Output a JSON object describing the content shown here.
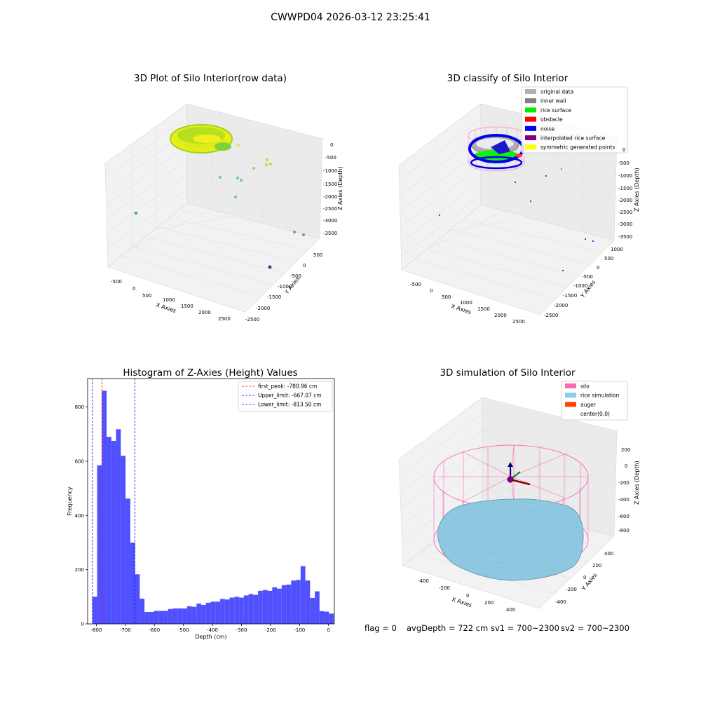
{
  "suptitle": "CWWPD04 2026-03-12 23:25:41",
  "panels": {
    "p1": {
      "title": "3D Plot of Silo Interior(row data)",
      "xlabel": "X Axies",
      "ylabel": "Y Axies",
      "zlabel": "Z Axies (Depth)",
      "xticks": [
        "-500",
        "0",
        "500",
        "1000",
        "1500",
        "2000",
        "2500"
      ],
      "yticks": [
        "500",
        "0",
        "-500",
        "-1000",
        "-1500",
        "-2000",
        "-2500"
      ],
      "zticks": [
        "0",
        "-500",
        "-1000",
        "-1500",
        "-2000",
        "-2500",
        "-3000",
        "-3500"
      ]
    },
    "p2": {
      "title": "3D classify of Silo Interior",
      "xlabel": "X Axies",
      "ylabel": "Y Axies",
      "zlabel": "Z Axies (Depth)",
      "xticks": [
        "-500",
        "0",
        "500",
        "1000",
        "1500",
        "2000",
        "2500"
      ],
      "yticks": [
        "1000",
        "500",
        "0",
        "-500",
        "-1000",
        "-1500",
        "-2000",
        "-2500"
      ],
      "zticks": [
        "0",
        "-500",
        "-1000",
        "-1500",
        "-2000",
        "-2500",
        "-3000",
        "-3500"
      ],
      "legend": [
        {
          "label": "original data",
          "color": "#b0b0b0"
        },
        {
          "label": "inner wall",
          "color": "#808080"
        },
        {
          "label": "rice surface",
          "color": "#00ee00"
        },
        {
          "label": "obstacle",
          "color": "#ff0000"
        },
        {
          "label": "noise",
          "color": "#0000ff"
        },
        {
          "label": "interpolated rice surface",
          "color": "#800080"
        },
        {
          "label": "symmetric generated points",
          "color": "#ffff00"
        }
      ]
    },
    "p4": {
      "title": "3D simulation of Silo Interior",
      "xlabel": "X Axies",
      "ylabel": "Y Axies",
      "zlabel": "Z Axies (Depth)",
      "xticks": [
        "-400",
        "-200",
        "0",
        "200",
        "400"
      ],
      "yticks": [
        "400",
        "200",
        "0",
        "-200",
        "-400"
      ],
      "zticks": [
        "200",
        "0",
        "-200",
        "-400",
        "-600",
        "-800"
      ],
      "legend": [
        {
          "label": "silo",
          "color": "#ff69b4"
        },
        {
          "label": "rice simulation",
          "color": "#87ceeb"
        },
        {
          "label": "auger",
          "color": "#ff4500"
        },
        {
          "label": "center(0,0)",
          "color": ""
        }
      ]
    }
  },
  "chart_data": {
    "type": "bar",
    "title": "Histogram of Z-Axies (Height) Values",
    "xlabel": "Depth (cm)",
    "ylabel": "Frequency",
    "xlim": [
      -830,
      20
    ],
    "ylim": [
      0,
      905
    ],
    "xticks": [
      -800,
      -700,
      -600,
      -500,
      -400,
      -300,
      -200,
      -100,
      0
    ],
    "yticks": [
      0,
      200,
      400,
      600,
      800
    ],
    "bin_start": -813.5,
    "bin_width": 16.3,
    "values": [
      100,
      585,
      860,
      690,
      675,
      718,
      620,
      462,
      300,
      183,
      93,
      44,
      44,
      48,
      48,
      48,
      55,
      57,
      57,
      57,
      65,
      63,
      75,
      70,
      78,
      82,
      82,
      92,
      90,
      97,
      100,
      97,
      105,
      110,
      107,
      122,
      125,
      122,
      135,
      130,
      143,
      145,
      160,
      162,
      213,
      160,
      96,
      120,
      47,
      45,
      38
    ],
    "bar_color": "#5050ff",
    "lines": [
      {
        "name": "first_peak: -780.96 cm",
        "x": -780.96,
        "color": "#ff0000"
      },
      {
        "name": "Upper_limit: -667.07 cm",
        "x": -667.07,
        "color": "#0000ff"
      },
      {
        "name": "Lower_limit: -813.50 cm",
        "x": -813.5,
        "color": "#0000ff"
      }
    ],
    "legend_position": "upper right"
  },
  "status": {
    "flag": "flag = 0",
    "avg_depth": "avgDepth = 722 cm",
    "sv1": "sv1 = 700~2300",
    "sv2": "sv2 = 700~2300"
  }
}
